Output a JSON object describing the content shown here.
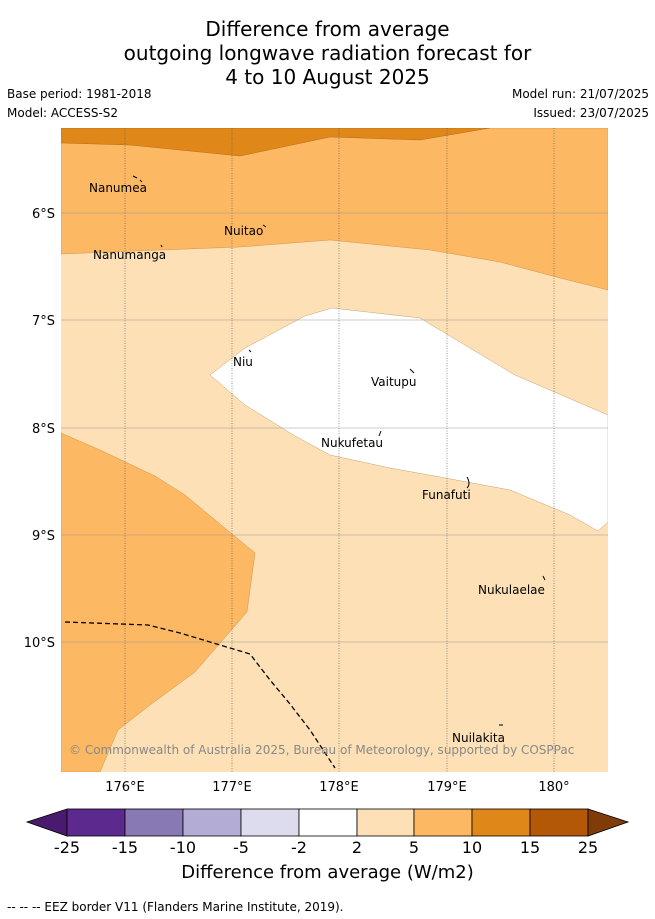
{
  "title_lines": [
    "Difference from average",
    "outgoing longwave radiation forecast for",
    "4 to 10 August 2025"
  ],
  "base_period": "Base period: 1981-2018",
  "model": "Model: ACCESS-S2",
  "model_run": "Model run: 21/07/2025",
  "issued": "Issued: 23/07/2025",
  "lat_labels": [
    "6°S",
    "7°S",
    "8°S",
    "9°S",
    "10°S"
  ],
  "lon_labels": [
    "176°E",
    "177°E",
    "178°E",
    "179°E",
    "180°"
  ],
  "places": [
    "Nanumea",
    "Nuitao",
    "Nanumanga",
    "Niu",
    "Vaitupu",
    "Nukufetau",
    "Funafuti",
    "Nukulaelae",
    "Nuilakita"
  ],
  "copyright": "© Commonwealth of Australia 2025, Bureau of Meteorology, supported by COSPPac",
  "colorbar": {
    "ticks": [
      "-25",
      "-15",
      "-10",
      "-5",
      "-2",
      "2",
      "5",
      "10",
      "15",
      "25"
    ],
    "colors": [
      "#4a1a6e",
      "#5c2a8e",
      "#8878b4",
      "#b3acd4",
      "#dcdcee",
      "#ffffff",
      "#fde0b5",
      "#fdb863",
      "#e0871a",
      "#b35806",
      "#7f3b08"
    ],
    "title": "Difference from average (W/m2)"
  },
  "footer": "-- -- -- EEZ border V11 (Flanders Marine Institute, 2019).",
  "fill_colors": {
    "band_5_10": "#fdb863",
    "band_10_15": "#e0871a",
    "band_2_5": "#fde0b5",
    "band_m2_2": "#ffffff"
  }
}
